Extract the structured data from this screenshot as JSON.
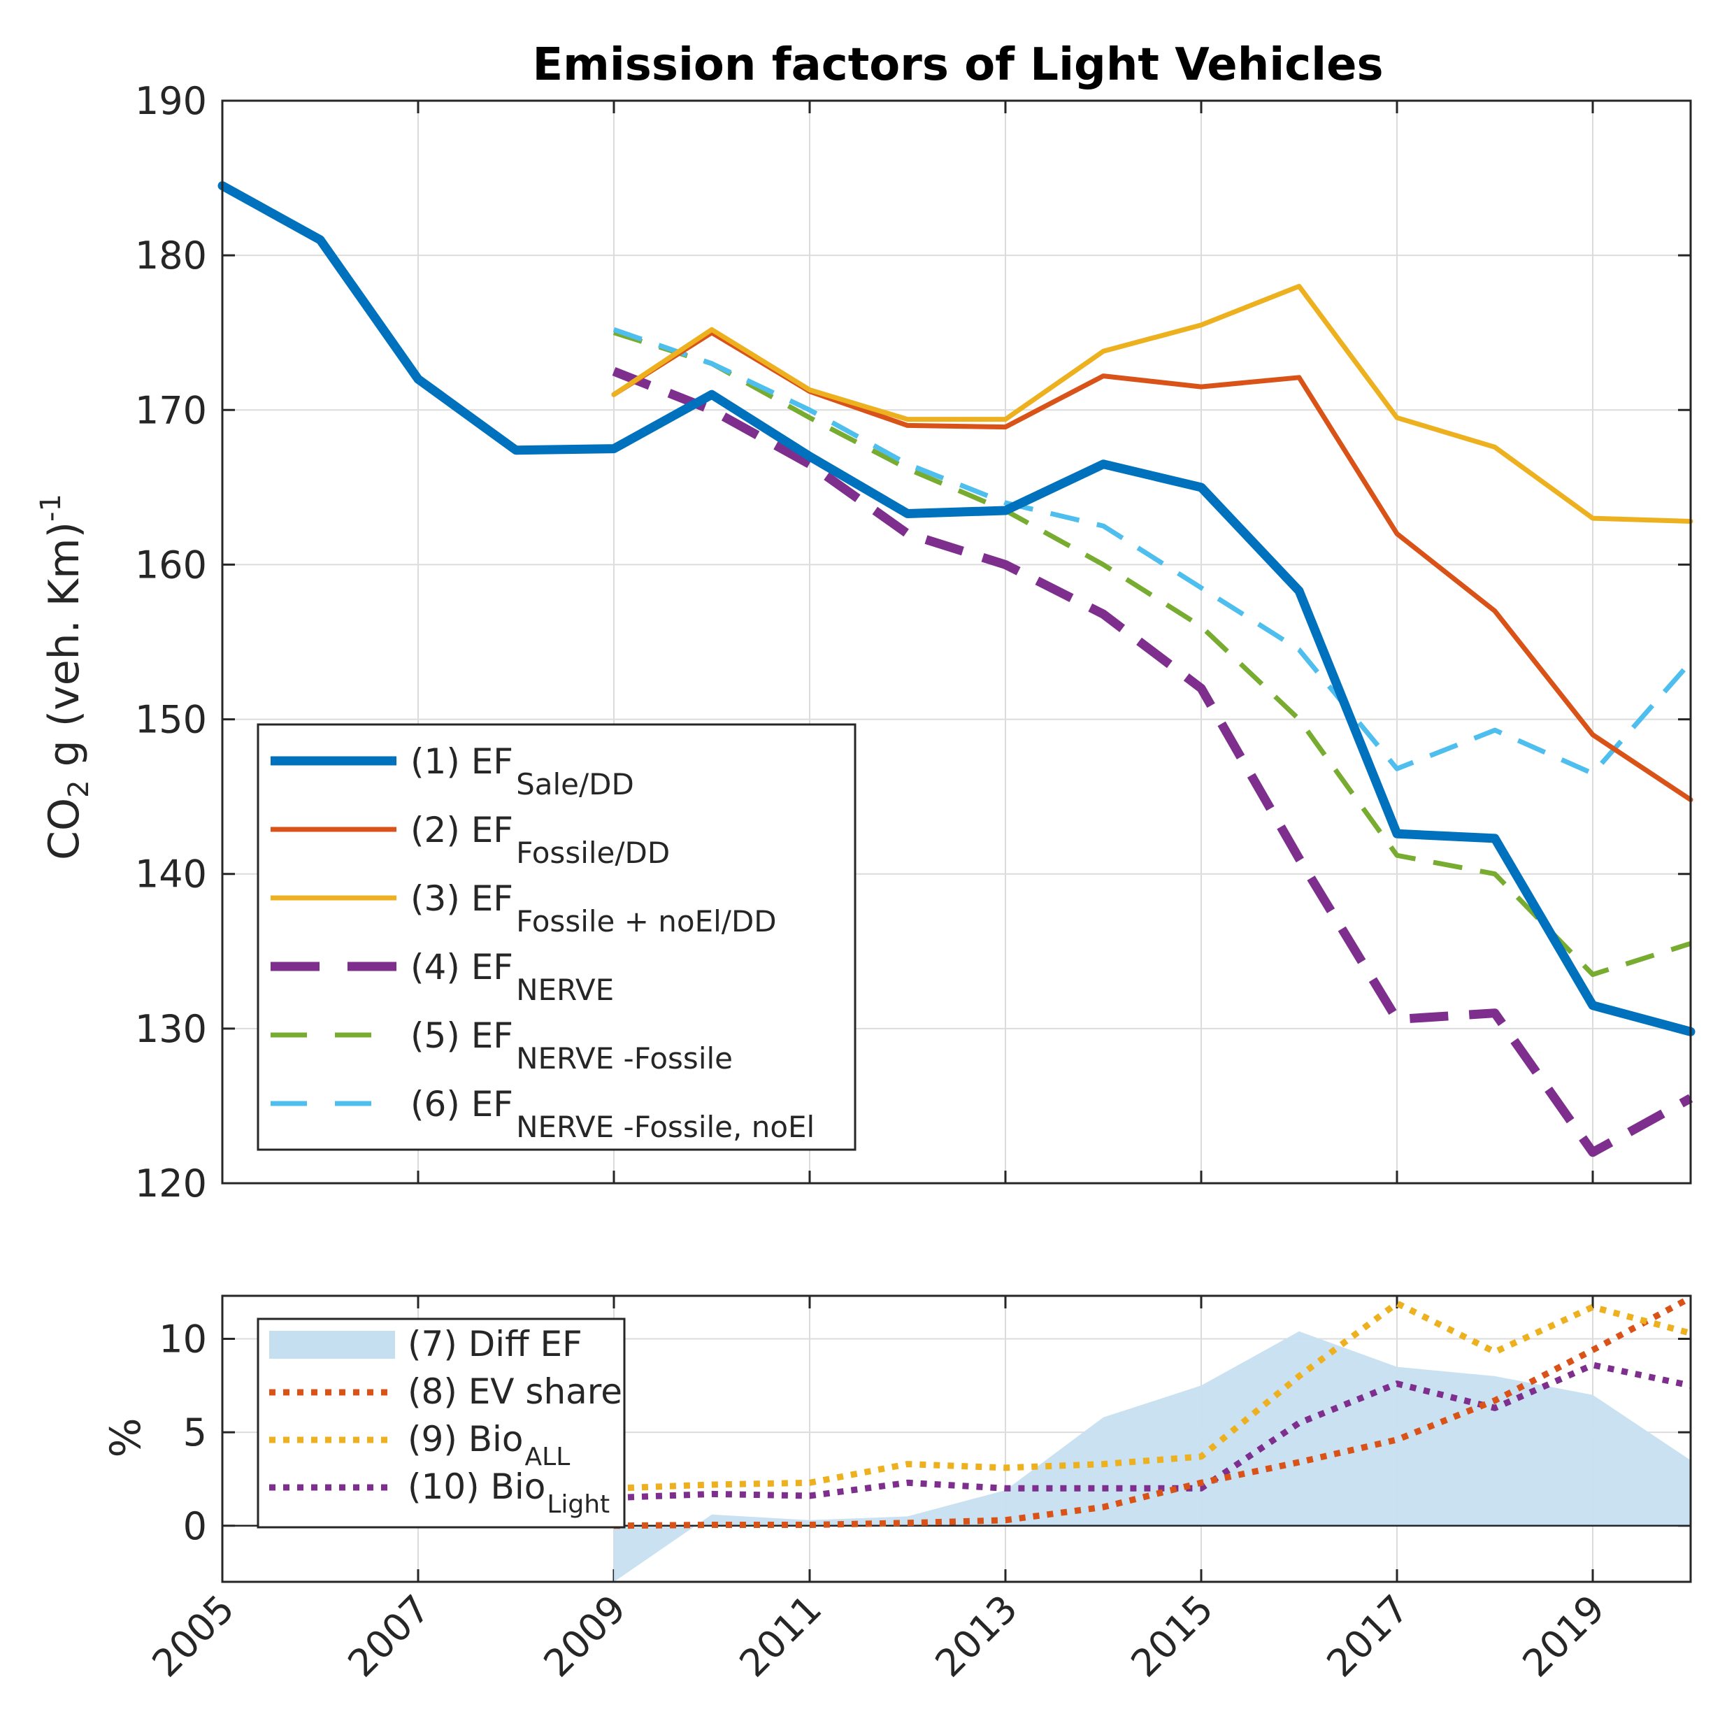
{
  "colors": {
    "blue": "#0072bd",
    "orange": "#d95319",
    "yellow": "#edb120",
    "purple": "#7e2f8e",
    "green": "#77ac30",
    "cyan": "#4dbeee",
    "fill": "#c6dff0"
  },
  "chart_data": [
    {
      "type": "line",
      "title": "Emission factors of Light Vehicles",
      "ylabel": "CO2 g (veh. Km)-1",
      "ylabel_parts": {
        "a": "CO",
        "b": "2",
        "c": " g (veh. Km)",
        "d": "-1"
      },
      "xlim": [
        2005,
        2020
      ],
      "ylim": [
        120,
        190
      ],
      "xticks": [
        2005,
        2007,
        2009,
        2011,
        2013,
        2015,
        2017,
        2019
      ],
      "yticks": [
        120,
        130,
        140,
        150,
        160,
        170,
        180,
        190
      ],
      "grid": true,
      "legend_position": "lower-left",
      "series": [
        {
          "name": "(1) EF Sale/DD",
          "label_main": "(1) EF",
          "label_sub": "Sale/DD",
          "color_key": "blue",
          "style": "solid",
          "width": "heavy",
          "x": [
            2005,
            2006,
            2007,
            2008,
            2009,
            2010,
            2011,
            2012,
            2013,
            2014,
            2015,
            2016,
            2017,
            2018,
            2019,
            2020
          ],
          "y": [
            184.5,
            181,
            172,
            167.4,
            167.5,
            171,
            167,
            163.3,
            163.5,
            166.5,
            165,
            158.3,
            142.6,
            142.3,
            131.5,
            129.8
          ]
        },
        {
          "name": "(2) EF Fossile/DD",
          "label_main": "(2) EF",
          "label_sub": "Fossile/DD",
          "color_key": "orange",
          "style": "solid",
          "width": "normal",
          "x": [
            2009,
            2010,
            2011,
            2012,
            2013,
            2014,
            2015,
            2016,
            2017,
            2018,
            2019,
            2020
          ],
          "y": [
            171,
            175,
            171.2,
            169,
            168.9,
            172.2,
            171.5,
            172.1,
            162,
            157,
            149,
            144.8
          ]
        },
        {
          "name": "(3) EF Fossile + noEl/DD",
          "label_main": "(3) EF",
          "label_sub": "Fossile + noEl/DD",
          "color_key": "yellow",
          "style": "solid",
          "width": "normal",
          "x": [
            2009,
            2010,
            2011,
            2012,
            2013,
            2014,
            2015,
            2016,
            2017,
            2018,
            2019,
            2020
          ],
          "y": [
            171,
            175.2,
            171.3,
            169.4,
            169.4,
            173.8,
            175.5,
            178,
            169.5,
            167.6,
            163,
            162.8
          ]
        },
        {
          "name": "(4) EF NERVE",
          "label_main": "(4) EF",
          "label_sub": "NERVE",
          "color_key": "purple",
          "style": "dashed",
          "width": "heavy",
          "x": [
            2009,
            2010,
            2011,
            2012,
            2013,
            2014,
            2015,
            2016,
            2017,
            2018,
            2019,
            2020
          ],
          "y": [
            172.5,
            170,
            166.5,
            162,
            160,
            156.8,
            152,
            141,
            130.6,
            131,
            122,
            125.5
          ]
        },
        {
          "name": "(5) EF NERVE -Fossile",
          "label_main": "(5) EF",
          "label_sub": "NERVE -Fossile",
          "color_key": "green",
          "style": "dashed",
          "width": "normal",
          "x": [
            2009,
            2010,
            2011,
            2012,
            2013,
            2014,
            2015,
            2016,
            2017,
            2018,
            2019,
            2020
          ],
          "y": [
            175,
            173,
            169.5,
            166.2,
            163.5,
            160,
            156,
            150,
            141.2,
            140,
            133.5,
            135.5
          ]
        },
        {
          "name": "(6) EF NERVE -Fossile, noEl",
          "label_main": "(6) EF",
          "label_sub": "NERVE -Fossile, noEl",
          "color_key": "cyan",
          "style": "dashed",
          "width": "normal",
          "x": [
            2009,
            2010,
            2011,
            2012,
            2013,
            2014,
            2015,
            2016,
            2017,
            2018,
            2019,
            2020
          ],
          "y": [
            175.2,
            173,
            170,
            166.5,
            164,
            162.5,
            158.5,
            154.5,
            146.8,
            149.3,
            146.5,
            153.7
          ]
        }
      ]
    },
    {
      "type": "line",
      "ylabel": "%",
      "xlim": [
        2005,
        2020
      ],
      "ylim": [
        -3,
        12.3
      ],
      "xticks": [
        2005,
        2007,
        2009,
        2011,
        2013,
        2015,
        2017,
        2019
      ],
      "xticklabels": [
        "2005",
        "2007",
        "2009",
        "2011",
        "2013",
        "2015",
        "2017",
        "2019"
      ],
      "yticks": [
        0,
        5,
        10
      ],
      "grid": true,
      "legend_position": "left",
      "series": [
        {
          "name": "(7) Diff EF",
          "label_main": "(7) Diff EF",
          "label_sub": "",
          "color_key": "fill",
          "style": "area",
          "x": [
            2009,
            2010,
            2011,
            2012,
            2013,
            2014,
            2015,
            2016,
            2017,
            2018,
            2019,
            2020
          ],
          "y": [
            -3,
            0.6,
            0.3,
            0.5,
            1.9,
            5.8,
            7.5,
            10.4,
            8.5,
            8,
            7,
            3.5
          ]
        },
        {
          "name": "(8) EV share",
          "label_main": "(8) EV share",
          "label_sub": "",
          "color_key": "orange",
          "style": "dotted",
          "x": [
            2009,
            2010,
            2011,
            2012,
            2013,
            2014,
            2015,
            2016,
            2017,
            2018,
            2019,
            2020
          ],
          "y": [
            0,
            0.05,
            0.05,
            0.15,
            0.3,
            1,
            2.3,
            3.4,
            4.6,
            6.7,
            9.4,
            12.2
          ]
        },
        {
          "name": "(9) Bio ALL",
          "label_main": "(9) Bio",
          "label_sub": "ALL",
          "color_key": "yellow",
          "style": "dotted",
          "x": [
            2009,
            2010,
            2011,
            2012,
            2013,
            2014,
            2015,
            2016,
            2017,
            2018,
            2019,
            2020
          ],
          "y": [
            2,
            2.2,
            2.3,
            3.3,
            3.1,
            3.3,
            3.7,
            8,
            11.9,
            9.3,
            11.7,
            10.3
          ]
        },
        {
          "name": "(10) Bio Light",
          "label_main": "(10) Bio",
          "label_sub": "Light",
          "color_key": "purple",
          "style": "dotted",
          "x": [
            2009,
            2010,
            2011,
            2012,
            2013,
            2014,
            2015,
            2016,
            2017,
            2018,
            2019,
            2020
          ],
          "y": [
            1.5,
            1.7,
            1.6,
            2.3,
            2,
            2,
            2,
            5.5,
            7.6,
            6.3,
            8.6,
            7.5
          ]
        }
      ]
    }
  ]
}
